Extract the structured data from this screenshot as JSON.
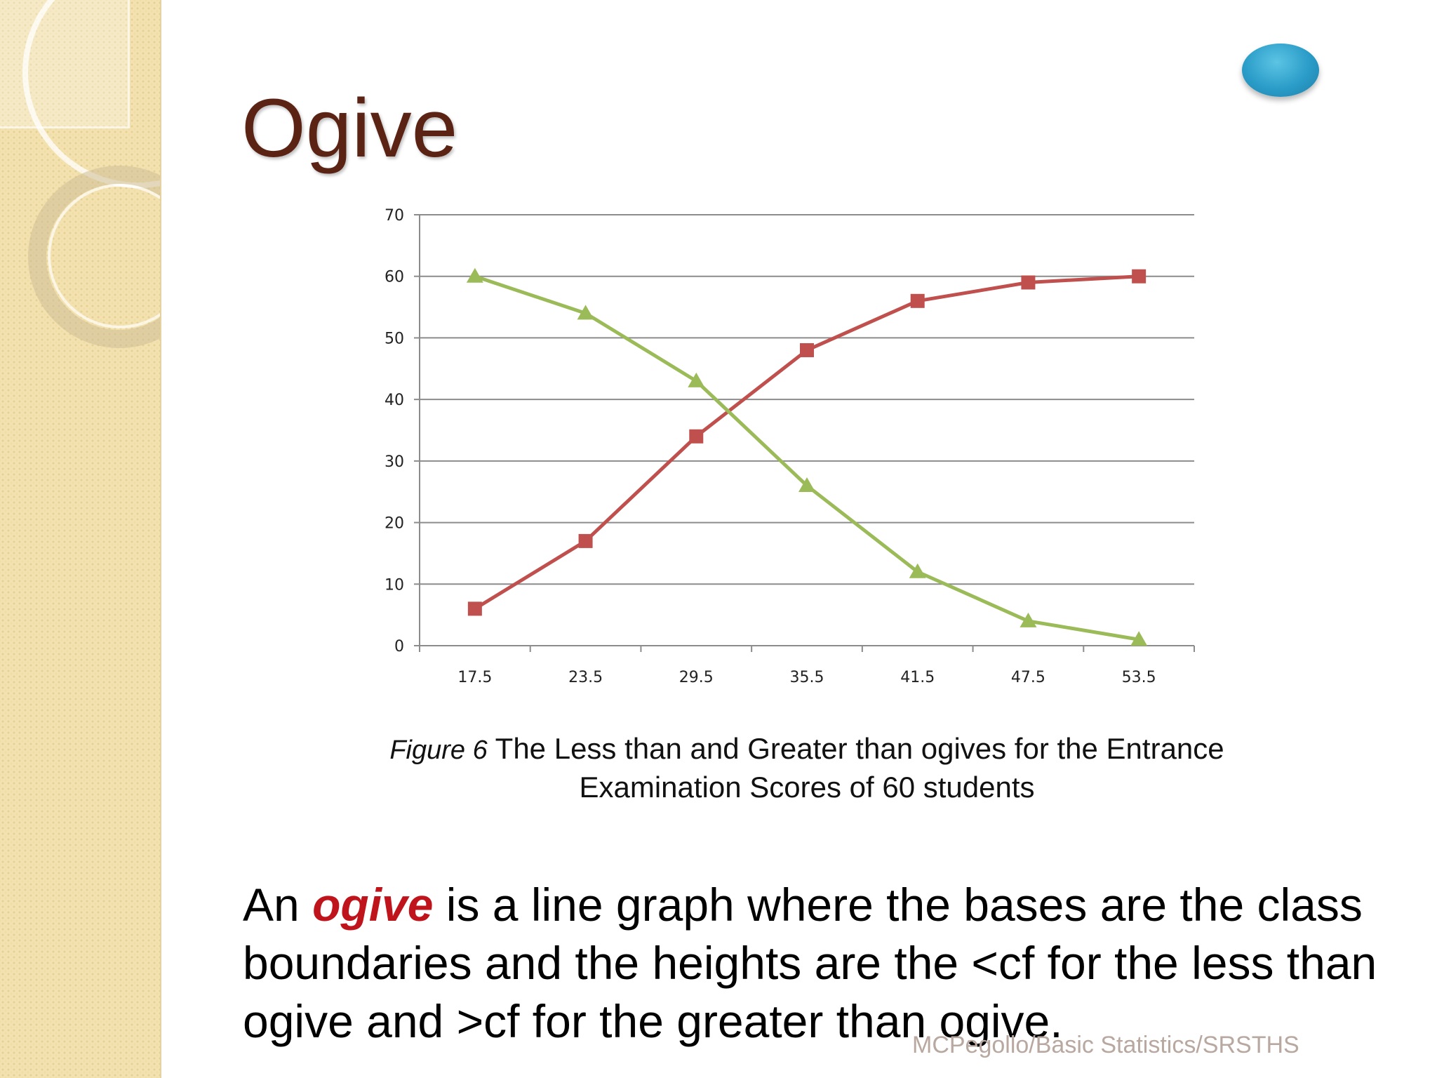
{
  "title": "Ogive",
  "caption": {
    "figure_label": "Figure 6",
    "text": "The Less than and Greater than ogives for the Entrance Examination Scores of 60 students"
  },
  "body": {
    "prefix": "An ",
    "keyword": "ogive",
    "suffix": " is a line graph where the bases are the class boundaries and the heights are the <cf for the less than ogive and >cf for the greater than ogive."
  },
  "footer": "MCPegollo/Basic Statistics/SRSTHS",
  "colors": {
    "less_than": "#c0504d",
    "greater_than": "#9bbb59",
    "title": "#5a2314",
    "keyword": "#c0141c"
  },
  "chart_data": {
    "type": "line",
    "title": "",
    "xlabel": "",
    "ylabel": "",
    "categories": [
      "17.5",
      "23.5",
      "29.5",
      "35.5",
      "41.5",
      "47.5",
      "53.5"
    ],
    "ylim": [
      0,
      70
    ],
    "yticks": [
      0,
      10,
      20,
      30,
      40,
      50,
      60,
      70
    ],
    "grid": true,
    "legend": "none",
    "series": [
      {
        "marker": "square",
        "color": "#c0504d",
        "values": [
          6,
          17,
          34,
          48,
          56,
          59,
          60
        ]
      },
      {
        "marker": "triangle",
        "color": "#9bbb59",
        "values": [
          60,
          54,
          43,
          26,
          12,
          4,
          1
        ]
      }
    ]
  }
}
